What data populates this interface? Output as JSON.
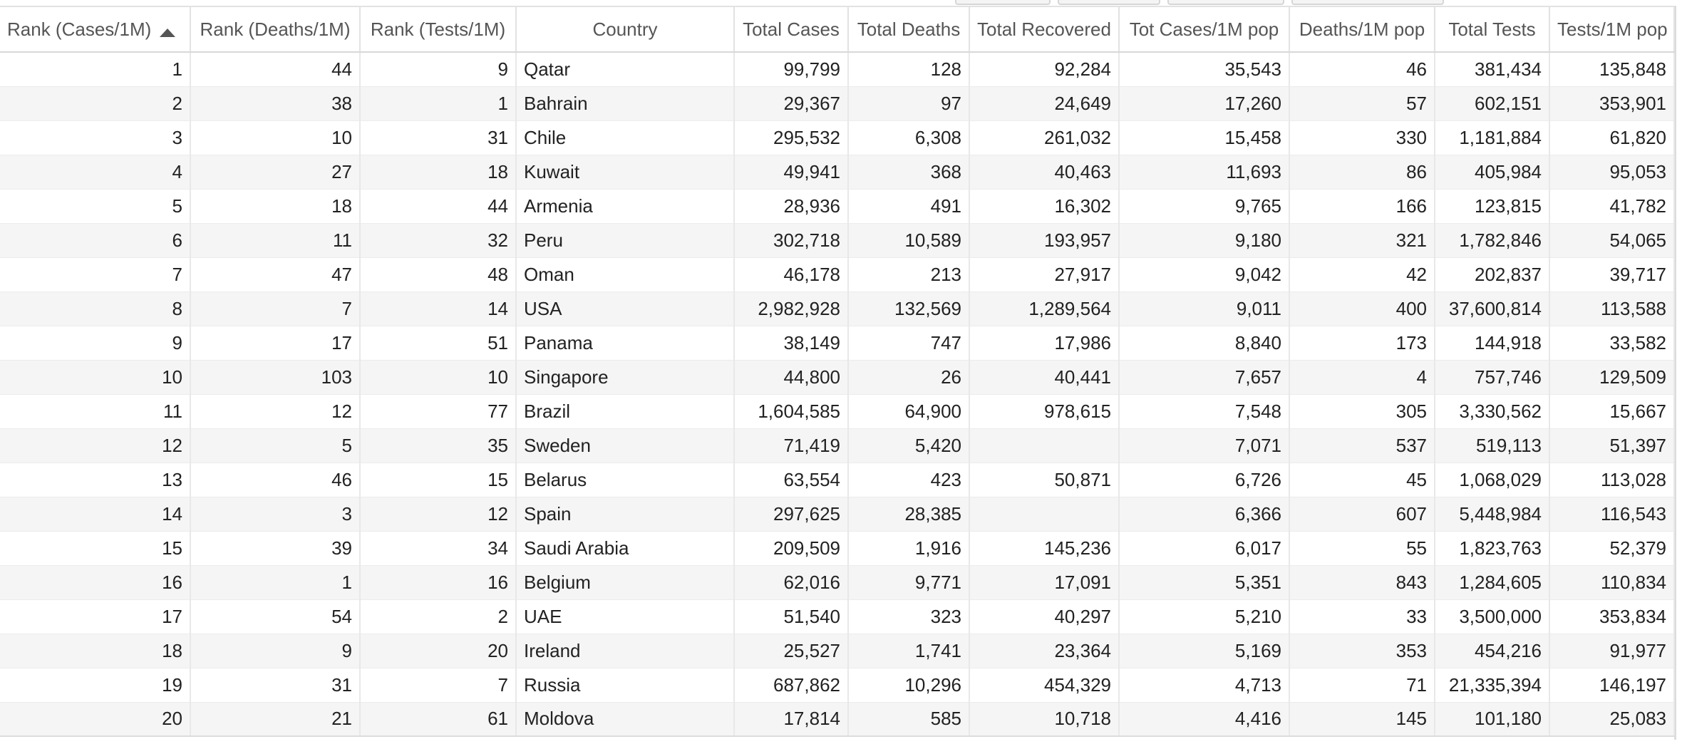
{
  "table": {
    "sort_column": "Rank (Cases/1M)",
    "sort_direction": "ascending",
    "columns": [
      {
        "key": "rank_cases",
        "label": "Rank (Cases/1M)",
        "align": "num"
      },
      {
        "key": "rank_deaths",
        "label": "Rank (Deaths/1M)",
        "align": "num"
      },
      {
        "key": "rank_tests",
        "label": "Rank (Tests/1M)",
        "align": "num"
      },
      {
        "key": "country",
        "label": "Country",
        "align": "txt"
      },
      {
        "key": "total_cases",
        "label": "Total Cases",
        "align": "num"
      },
      {
        "key": "total_deaths",
        "label": "Total Deaths",
        "align": "num"
      },
      {
        "key": "total_recovered",
        "label": "Total Recovered",
        "align": "num"
      },
      {
        "key": "cases_per_1m",
        "label": "Tot Cases/1M pop",
        "align": "num"
      },
      {
        "key": "deaths_per_1m",
        "label": "Deaths/1M pop",
        "align": "num"
      },
      {
        "key": "total_tests",
        "label": "Total Tests",
        "align": "num"
      },
      {
        "key": "tests_per_1m",
        "label": "Tests/1M pop",
        "align": "num"
      }
    ],
    "rows": [
      [
        "1",
        "44",
        "9",
        "Qatar",
        "99,799",
        "128",
        "92,284",
        "35,543",
        "46",
        "381,434",
        "135,848"
      ],
      [
        "2",
        "38",
        "1",
        "Bahrain",
        "29,367",
        "97",
        "24,649",
        "17,260",
        "57",
        "602,151",
        "353,901"
      ],
      [
        "3",
        "10",
        "31",
        "Chile",
        "295,532",
        "6,308",
        "261,032",
        "15,458",
        "330",
        "1,181,884",
        "61,820"
      ],
      [
        "4",
        "27",
        "18",
        "Kuwait",
        "49,941",
        "368",
        "40,463",
        "11,693",
        "86",
        "405,984",
        "95,053"
      ],
      [
        "5",
        "18",
        "44",
        "Armenia",
        "28,936",
        "491",
        "16,302",
        "9,765",
        "166",
        "123,815",
        "41,782"
      ],
      [
        "6",
        "11",
        "32",
        "Peru",
        "302,718",
        "10,589",
        "193,957",
        "9,180",
        "321",
        "1,782,846",
        "54,065"
      ],
      [
        "7",
        "47",
        "48",
        "Oman",
        "46,178",
        "213",
        "27,917",
        "9,042",
        "42",
        "202,837",
        "39,717"
      ],
      [
        "8",
        "7",
        "14",
        "USA",
        "2,982,928",
        "132,569",
        "1,289,564",
        "9,011",
        "400",
        "37,600,814",
        "113,588"
      ],
      [
        "9",
        "17",
        "51",
        "Panama",
        "38,149",
        "747",
        "17,986",
        "8,840",
        "173",
        "144,918",
        "33,582"
      ],
      [
        "10",
        "103",
        "10",
        "Singapore",
        "44,800",
        "26",
        "40,441",
        "7,657",
        "4",
        "757,746",
        "129,509"
      ],
      [
        "11",
        "12",
        "77",
        "Brazil",
        "1,604,585",
        "64,900",
        "978,615",
        "7,548",
        "305",
        "3,330,562",
        "15,667"
      ],
      [
        "12",
        "5",
        "35",
        "Sweden",
        "71,419",
        "5,420",
        "",
        "7,071",
        "537",
        "519,113",
        "51,397"
      ],
      [
        "13",
        "46",
        "15",
        "Belarus",
        "63,554",
        "423",
        "50,871",
        "6,726",
        "45",
        "1,068,029",
        "113,028"
      ],
      [
        "14",
        "3",
        "12",
        "Spain",
        "297,625",
        "28,385",
        "",
        "6,366",
        "607",
        "5,448,984",
        "116,543"
      ],
      [
        "15",
        "39",
        "34",
        "Saudi Arabia",
        "209,509",
        "1,916",
        "145,236",
        "6,017",
        "55",
        "1,823,763",
        "52,379"
      ],
      [
        "16",
        "1",
        "16",
        "Belgium",
        "62,016",
        "9,771",
        "17,091",
        "5,351",
        "843",
        "1,284,605",
        "110,834"
      ],
      [
        "17",
        "54",
        "2",
        "UAE",
        "51,540",
        "323",
        "40,297",
        "5,210",
        "33",
        "3,500,000",
        "353,834"
      ],
      [
        "18",
        "9",
        "20",
        "Ireland",
        "25,527",
        "1,741",
        "23,364",
        "5,169",
        "353",
        "454,216",
        "91,977"
      ],
      [
        "19",
        "31",
        "7",
        "Russia",
        "687,862",
        "10,296",
        "454,329",
        "4,713",
        "71",
        "21,335,394",
        "146,197"
      ],
      [
        "20",
        "21",
        "61",
        "Moldova",
        "17,814",
        "585",
        "10,718",
        "4,416",
        "145",
        "101,180",
        "25,083"
      ]
    ]
  },
  "colors": {
    "row_alt_background": "#f5f5f5",
    "row_background": "#ffffff",
    "header_text": "#555555",
    "cell_text": "#222222",
    "grid_line": "#e2e2e2"
  },
  "icons": {
    "sort_indicator": "sort-ascending-icon"
  }
}
